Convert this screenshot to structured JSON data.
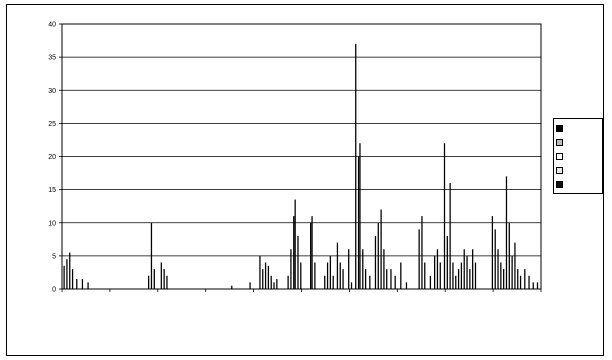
{
  "chart_data": {
    "type": "bar",
    "title": "",
    "xlabel": "",
    "ylabel": "",
    "ylim": [
      0,
      40
    ],
    "yticks": [
      0,
      5,
      10,
      15,
      20,
      25,
      30,
      35,
      40
    ],
    "grid": true,
    "legend_position": "right",
    "categories": [
      "",
      "",
      "",
      "",
      "",
      "",
      "",
      "",
      "",
      "",
      ""
    ],
    "series": [
      {
        "name": "",
        "color": "#000000"
      },
      {
        "name": "",
        "color": "#bdbdbd"
      },
      {
        "name": "",
        "color": "#ffffff"
      },
      {
        "name": "",
        "color": "#e8e8e8"
      },
      {
        "name": "",
        "color": "#111111"
      }
    ],
    "bar_color": "#000000",
    "day_count": 340,
    "spikes": [
      {
        "day": 1,
        "value": 3.5
      },
      {
        "day": 3,
        "value": 4.5
      },
      {
        "day": 5,
        "value": 5.5
      },
      {
        "day": 7,
        "value": 3
      },
      {
        "day": 10,
        "value": 1.5
      },
      {
        "day": 14,
        "value": 1.5
      },
      {
        "day": 18,
        "value": 1
      },
      {
        "day": 61,
        "value": 2
      },
      {
        "day": 63,
        "value": 10
      },
      {
        "day": 65,
        "value": 3
      },
      {
        "day": 70,
        "value": 4
      },
      {
        "day": 72,
        "value": 3
      },
      {
        "day": 74,
        "value": 2
      },
      {
        "day": 120,
        "value": 0.5
      },
      {
        "day": 133,
        "value": 1
      },
      {
        "day": 140,
        "value": 5
      },
      {
        "day": 142,
        "value": 3
      },
      {
        "day": 144,
        "value": 4
      },
      {
        "day": 146,
        "value": 3.5
      },
      {
        "day": 148,
        "value": 2
      },
      {
        "day": 150,
        "value": 1
      },
      {
        "day": 152,
        "value": 1.5
      },
      {
        "day": 160,
        "value": 2
      },
      {
        "day": 162,
        "value": 6
      },
      {
        "day": 164,
        "value": 11
      },
      {
        "day": 165,
        "value": 13.5
      },
      {
        "day": 167,
        "value": 8
      },
      {
        "day": 169,
        "value": 4
      },
      {
        "day": 176,
        "value": 10
      },
      {
        "day": 177,
        "value": 11
      },
      {
        "day": 179,
        "value": 4
      },
      {
        "day": 186,
        "value": 2
      },
      {
        "day": 188,
        "value": 4
      },
      {
        "day": 190,
        "value": 5
      },
      {
        "day": 192,
        "value": 2
      },
      {
        "day": 195,
        "value": 7
      },
      {
        "day": 197,
        "value": 4
      },
      {
        "day": 199,
        "value": 3
      },
      {
        "day": 203,
        "value": 6
      },
      {
        "day": 205,
        "value": 1
      },
      {
        "day": 208,
        "value": 37
      },
      {
        "day": 210,
        "value": 20
      },
      {
        "day": 211,
        "value": 22
      },
      {
        "day": 213,
        "value": 6
      },
      {
        "day": 215,
        "value": 3
      },
      {
        "day": 218,
        "value": 2
      },
      {
        "day": 222,
        "value": 8
      },
      {
        "day": 224,
        "value": 10
      },
      {
        "day": 226,
        "value": 12
      },
      {
        "day": 228,
        "value": 6
      },
      {
        "day": 230,
        "value": 3
      },
      {
        "day": 233,
        "value": 3
      },
      {
        "day": 236,
        "value": 2
      },
      {
        "day": 240,
        "value": 4
      },
      {
        "day": 244,
        "value": 1
      },
      {
        "day": 253,
        "value": 9
      },
      {
        "day": 255,
        "value": 11
      },
      {
        "day": 257,
        "value": 4
      },
      {
        "day": 261,
        "value": 2
      },
      {
        "day": 264,
        "value": 5
      },
      {
        "day": 266,
        "value": 6
      },
      {
        "day": 268,
        "value": 4
      },
      {
        "day": 271,
        "value": 22
      },
      {
        "day": 273,
        "value": 8
      },
      {
        "day": 275,
        "value": 16
      },
      {
        "day": 277,
        "value": 4
      },
      {
        "day": 279,
        "value": 2
      },
      {
        "day": 281,
        "value": 3
      },
      {
        "day": 283,
        "value": 4
      },
      {
        "day": 285,
        "value": 6
      },
      {
        "day": 287,
        "value": 5
      },
      {
        "day": 289,
        "value": 3
      },
      {
        "day": 291,
        "value": 6
      },
      {
        "day": 293,
        "value": 4
      },
      {
        "day": 305,
        "value": 11
      },
      {
        "day": 307,
        "value": 9
      },
      {
        "day": 309,
        "value": 6
      },
      {
        "day": 311,
        "value": 4
      },
      {
        "day": 313,
        "value": 3
      },
      {
        "day": 315,
        "value": 17
      },
      {
        "day": 317,
        "value": 10
      },
      {
        "day": 319,
        "value": 5
      },
      {
        "day": 321,
        "value": 7
      },
      {
        "day": 323,
        "value": 3
      },
      {
        "day": 325,
        "value": 2
      },
      {
        "day": 328,
        "value": 3
      },
      {
        "day": 331,
        "value": 2
      },
      {
        "day": 334,
        "value": 1
      },
      {
        "day": 337,
        "value": 1
      }
    ]
  }
}
